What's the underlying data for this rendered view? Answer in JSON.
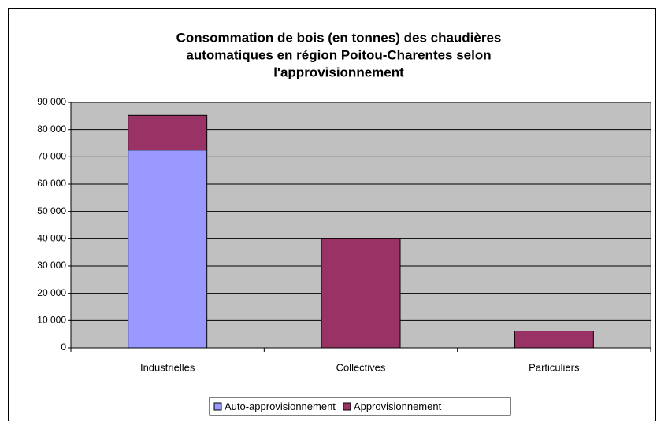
{
  "chart_data": {
    "type": "stacked_bar",
    "title": [
      "Consommation de bois (en tonnes) des chaudières",
      "automatiques en région Poitou-Charentes selon",
      "l'approvisionnement"
    ],
    "categories": [
      "Industrielles",
      "Collectives",
      "Particuliers"
    ],
    "series": [
      {
        "name": "Auto-approvisionnement",
        "color": "#9999ff",
        "values": [
          72500,
          0,
          0
        ]
      },
      {
        "name": "Approvisionnement",
        "color": "#993366",
        "values": [
          12800,
          40000,
          6200
        ]
      }
    ],
    "ylim": [
      0,
      90000
    ],
    "yticks": [
      0,
      {
        "value": 10000,
        "label": "10 000"
      },
      {
        "value": 20000,
        "label": "20 000"
      },
      {
        "value": 30000,
        "label": "30 000"
      },
      {
        "value": 40000,
        "label": "40 000"
      },
      {
        "value": 50000,
        "label": "50 000"
      },
      {
        "value": 60000,
        "label": "60 000"
      },
      {
        "value": 70000,
        "label": "70 000"
      },
      {
        "value": 80000,
        "label": "80 000"
      },
      {
        "value": 90000,
        "label": "90 000"
      }
    ],
    "grid": true,
    "legend": "bottom",
    "plot_background": "#c0c0c0"
  }
}
